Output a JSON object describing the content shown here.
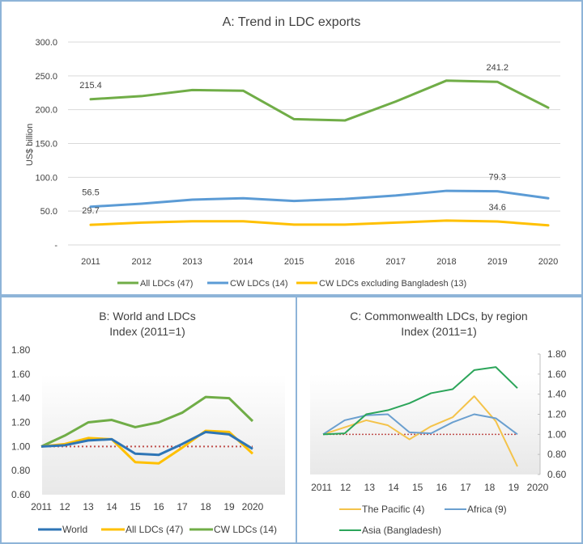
{
  "chart_data": [
    {
      "id": "a",
      "type": "line",
      "title": "A: Trend in LDC exports",
      "xlabel": "",
      "ylabel": "US$ billion",
      "x": [
        "2011",
        "2012",
        "2013",
        "2014",
        "2015",
        "2016",
        "2017",
        "2018",
        "2019",
        "2020"
      ],
      "yticks": [
        "-",
        "50.0",
        "100.0",
        "150.0",
        "200.0",
        "250.0",
        "300.0"
      ],
      "ylim": [
        0,
        300
      ],
      "grid": true,
      "legend_position": "bottom",
      "series": [
        {
          "name": "All LDCs (47)",
          "color": "#70ad47",
          "values": [
            215.4,
            220,
            229,
            228,
            186,
            184,
            212,
            243,
            241.2,
            203
          ],
          "labels": [
            {
              "index": 0,
              "text": "215.4"
            },
            {
              "index": 8,
              "text": "241.2"
            }
          ]
        },
        {
          "name": "CW LDCs (14)",
          "color": "#5b9bd5",
          "values": [
            56.5,
            61,
            67,
            69,
            65,
            68,
            73,
            80,
            79.3,
            69
          ],
          "labels": [
            {
              "index": 0,
              "text": "56.5"
            },
            {
              "index": 8,
              "text": "79.3"
            }
          ]
        },
        {
          "name": "CW LDCs excluding Bangladesh (13)",
          "color": "#ffc000",
          "values": [
            29.7,
            33,
            35,
            35,
            30,
            30,
            33,
            36,
            34.6,
            29
          ],
          "labels": [
            {
              "index": 0,
              "text": "29.7"
            },
            {
              "index": 8,
              "text": "34.6"
            }
          ]
        }
      ]
    },
    {
      "id": "b",
      "type": "line",
      "title": "B: World and LDCs",
      "subtitle": "Index (2011=1)",
      "x": [
        "2011",
        "12",
        "13",
        "14",
        "15",
        "16",
        "17",
        "18",
        "19",
        "2020"
      ],
      "yticks": [
        "0.60",
        "0.80",
        "1.00",
        "1.20",
        "1.40",
        "1.60",
        "1.80"
      ],
      "ylim": [
        0.6,
        1.8
      ],
      "reference_line": {
        "value": 1.0,
        "style": "dotted",
        "color": "#c0504d"
      },
      "legend_position": "bottom",
      "series": [
        {
          "name": "World",
          "color": "#2e75b6",
          "values": [
            1.0,
            1.01,
            1.05,
            1.06,
            0.94,
            0.93,
            1.02,
            1.12,
            1.1,
            0.98
          ]
        },
        {
          "name": "All LDCs (47)",
          "color": "#ffc000",
          "values": [
            1.0,
            1.02,
            1.07,
            1.06,
            0.87,
            0.86,
            0.99,
            1.13,
            1.12,
            0.94
          ]
        },
        {
          "name": "CW LDCs (14)",
          "color": "#70ad47",
          "values": [
            1.0,
            1.09,
            1.2,
            1.22,
            1.16,
            1.2,
            1.28,
            1.41,
            1.4,
            1.21
          ]
        }
      ]
    },
    {
      "id": "c",
      "type": "line",
      "title": "C: Commonwealth LDCs, by region",
      "subtitle": "Index (2011=1)",
      "x": [
        "2011",
        "12",
        "13",
        "14",
        "15",
        "16",
        "17",
        "18",
        "19",
        "2020"
      ],
      "yticks": [
        "0.60",
        "0.80",
        "1.00",
        "1.20",
        "1.40",
        "1.60",
        "1.80"
      ],
      "ylim": [
        0.6,
        1.8
      ],
      "y_axis_side": "right",
      "reference_line": {
        "value": 1.0,
        "style": "dotted",
        "color": "#c0504d"
      },
      "legend_position": "bottom",
      "series": [
        {
          "name": "The Pacific (4)",
          "color": "#f4c34a",
          "values": [
            1.0,
            1.07,
            1.14,
            1.09,
            0.95,
            1.08,
            1.17,
            1.38,
            1.13,
            0.68
          ]
        },
        {
          "name": "Africa (9)",
          "color": "#6a9fcf",
          "values": [
            1.0,
            1.14,
            1.19,
            1.2,
            1.02,
            1.01,
            1.12,
            1.2,
            1.16,
            1.0
          ]
        },
        {
          "name": "Asia (Bangladesh)",
          "color": "#2ca55a",
          "values": [
            1.0,
            1.01,
            1.2,
            1.24,
            1.31,
            1.41,
            1.45,
            1.64,
            1.67,
            1.46
          ]
        }
      ]
    }
  ]
}
